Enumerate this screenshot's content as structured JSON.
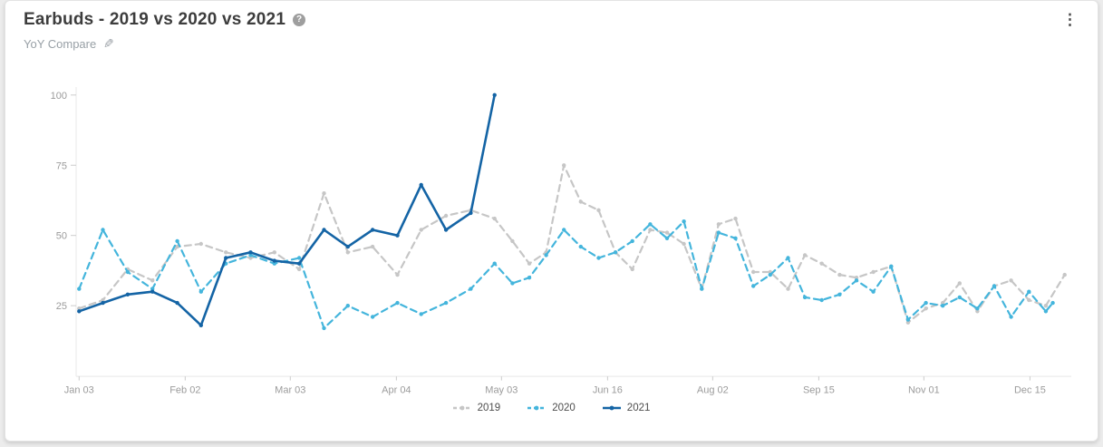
{
  "header": {
    "title": "Earbuds - 2019 vs 2020 vs 2021",
    "subtitle": "YoY Compare",
    "help_icon": "?",
    "edit_icon": "pencil",
    "menu_icon": "kebab-vertical"
  },
  "colors": {
    "series_2019": "#c6c6c6",
    "series_2020": "#44b5dc",
    "series_2021": "#1464a5",
    "axis_line": "#e8e8e8",
    "tick": "#cccccc",
    "tick_label": "#9b9b9b",
    "card_bg": "#ffffff",
    "page_bg": "#ececec"
  },
  "chart_data": {
    "type": "line",
    "title": "Earbuds - 2019 vs 2020 vs 2021",
    "xlabel": "",
    "ylabel": "",
    "grid": "off",
    "legend_position": "bottom",
    "y_range": [
      0,
      100
    ],
    "y_ticks": [
      25,
      50,
      75,
      100
    ],
    "x_ticks": [
      {
        "label": "Jan 03",
        "pos": 0.003
      },
      {
        "label": "Feb 02",
        "pos": 0.11
      },
      {
        "label": "Mar 03",
        "pos": 0.216
      },
      {
        "label": "Apr 04",
        "pos": 0.323
      },
      {
        "label": "May 03",
        "pos": 0.429
      },
      {
        "label": "Jun 16",
        "pos": 0.536
      },
      {
        "label": "Aug 02",
        "pos": 0.642
      },
      {
        "label": "Sep 15",
        "pos": 0.749
      },
      {
        "label": "Nov 01",
        "pos": 0.855
      },
      {
        "label": "Dec 15",
        "pos": 0.962
      }
    ],
    "series": [
      {
        "name": "2019",
        "style": "dashed",
        "color": "#c6c6c6",
        "points": [
          [
            0.003,
            24
          ],
          [
            0.027,
            27
          ],
          [
            0.052,
            38
          ],
          [
            0.077,
            34
          ],
          [
            0.102,
            46
          ],
          [
            0.126,
            47
          ],
          [
            0.151,
            44
          ],
          [
            0.176,
            42
          ],
          [
            0.2,
            44
          ],
          [
            0.225,
            38
          ],
          [
            0.25,
            65
          ],
          [
            0.274,
            44
          ],
          [
            0.299,
            46
          ],
          [
            0.324,
            36
          ],
          [
            0.348,
            52
          ],
          [
            0.373,
            57
          ],
          [
            0.398,
            59
          ],
          [
            0.422,
            56
          ],
          [
            0.44,
            48
          ],
          [
            0.457,
            40
          ],
          [
            0.474,
            44
          ],
          [
            0.492,
            75
          ],
          [
            0.509,
            62
          ],
          [
            0.527,
            59
          ],
          [
            0.544,
            44
          ],
          [
            0.561,
            38
          ],
          [
            0.579,
            52
          ],
          [
            0.596,
            51
          ],
          [
            0.613,
            47
          ],
          [
            0.631,
            31
          ],
          [
            0.648,
            54
          ],
          [
            0.665,
            56
          ],
          [
            0.683,
            37
          ],
          [
            0.7,
            37
          ],
          [
            0.718,
            31
          ],
          [
            0.735,
            43
          ],
          [
            0.752,
            40
          ],
          [
            0.77,
            36
          ],
          [
            0.787,
            35
          ],
          [
            0.804,
            37
          ],
          [
            0.822,
            39
          ],
          [
            0.839,
            19
          ],
          [
            0.857,
            24
          ],
          [
            0.874,
            26
          ],
          [
            0.891,
            33
          ],
          [
            0.909,
            23
          ],
          [
            0.926,
            32
          ],
          [
            0.943,
            34
          ],
          [
            0.961,
            27
          ],
          [
            0.978,
            25
          ],
          [
            0.997,
            36
          ]
        ]
      },
      {
        "name": "2020",
        "style": "dashed",
        "color": "#44b5dc",
        "points": [
          [
            0.003,
            31
          ],
          [
            0.027,
            52
          ],
          [
            0.052,
            37
          ],
          [
            0.077,
            31
          ],
          [
            0.102,
            48
          ],
          [
            0.126,
            30
          ],
          [
            0.151,
            40
          ],
          [
            0.176,
            43
          ],
          [
            0.2,
            40
          ],
          [
            0.225,
            42
          ],
          [
            0.25,
            17
          ],
          [
            0.274,
            25
          ],
          [
            0.299,
            21
          ],
          [
            0.324,
            26
          ],
          [
            0.348,
            22
          ],
          [
            0.373,
            26
          ],
          [
            0.398,
            31
          ],
          [
            0.422,
            40
          ],
          [
            0.44,
            33
          ],
          [
            0.457,
            35
          ],
          [
            0.474,
            43
          ],
          [
            0.492,
            52
          ],
          [
            0.509,
            46
          ],
          [
            0.527,
            42
          ],
          [
            0.544,
            44
          ],
          [
            0.561,
            48
          ],
          [
            0.579,
            54
          ],
          [
            0.596,
            49
          ],
          [
            0.613,
            55
          ],
          [
            0.631,
            31
          ],
          [
            0.648,
            51
          ],
          [
            0.665,
            49
          ],
          [
            0.683,
            32
          ],
          [
            0.7,
            36
          ],
          [
            0.718,
            42
          ],
          [
            0.735,
            28
          ],
          [
            0.752,
            27
          ],
          [
            0.77,
            29
          ],
          [
            0.787,
            34
          ],
          [
            0.804,
            30
          ],
          [
            0.822,
            39
          ],
          [
            0.839,
            20
          ],
          [
            0.857,
            26
          ],
          [
            0.874,
            25
          ],
          [
            0.891,
            28
          ],
          [
            0.909,
            24
          ],
          [
            0.926,
            32
          ],
          [
            0.943,
            21
          ],
          [
            0.961,
            30
          ],
          [
            0.978,
            23
          ],
          [
            0.985,
            26
          ]
        ]
      },
      {
        "name": "2021",
        "style": "solid",
        "color": "#1464a5",
        "points": [
          [
            0.003,
            23
          ],
          [
            0.027,
            26
          ],
          [
            0.052,
            29
          ],
          [
            0.077,
            30
          ],
          [
            0.102,
            26
          ],
          [
            0.126,
            18
          ],
          [
            0.151,
            42
          ],
          [
            0.176,
            44
          ],
          [
            0.2,
            41
          ],
          [
            0.225,
            40
          ],
          [
            0.25,
            52
          ],
          [
            0.274,
            46
          ],
          [
            0.299,
            52
          ],
          [
            0.324,
            50
          ],
          [
            0.348,
            68
          ],
          [
            0.373,
            52
          ],
          [
            0.398,
            58
          ],
          [
            0.422,
            100
          ]
        ]
      }
    ]
  },
  "legend": {
    "items": [
      {
        "label": "2019"
      },
      {
        "label": "2020"
      },
      {
        "label": "2021"
      }
    ]
  }
}
